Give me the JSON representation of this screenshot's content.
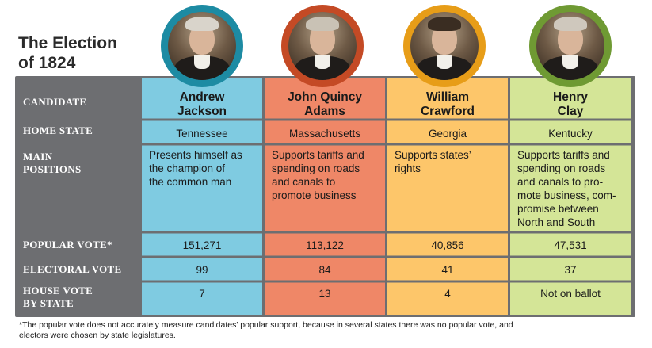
{
  "title_line1": "The Election",
  "title_line2": "of 1824",
  "row_headers": {
    "candidate": "CANDIDATE",
    "home_state": "HOME STATE",
    "main_positions_line1": "MAIN",
    "main_positions_line2": "POSITIONS",
    "popular_vote": "POPULAR VOTE*",
    "electoral_vote": "ELECTORAL VOTE",
    "house_vote_line1": "HOUSE VOTE",
    "house_vote_line2": "BY STATE"
  },
  "candidates": [
    {
      "first": "Andrew",
      "last": "Jackson",
      "home_state": "Tennessee",
      "positions": [
        "Presents himself as",
        "the champion of",
        "the common man"
      ],
      "popular_vote": "151,271",
      "electoral_vote": "99",
      "house_vote": "7",
      "color": "#7fcbe1",
      "ring": "#1d8ba3",
      "hair": "#d9d4cb"
    },
    {
      "first": "John Quincy",
      "last": "Adams",
      "home_state": "Massachusetts",
      "positions": [
        "Supports tariffs and",
        "spending on roads",
        "and canals to",
        "promote business"
      ],
      "popular_vote": "113,122",
      "electoral_vote": "84",
      "house_vote": "13",
      "color": "#ef8767",
      "ring": "#c44a25",
      "hair": "#c9c2b5"
    },
    {
      "first": "William",
      "last": "Crawford",
      "home_state": "Georgia",
      "positions": [
        "Supports states’",
        "rights"
      ],
      "popular_vote": "40,856",
      "electoral_vote": "41",
      "house_vote": "4",
      "color": "#fdc66a",
      "ring": "#e79d18",
      "hair": "#3a2d22"
    },
    {
      "first": "Henry",
      "last": "Clay",
      "home_state": "Kentucky",
      "positions": [
        "Supports tariffs and",
        "spending on roads",
        "and canals to pro-",
        "mote business, com-",
        "promise between",
        "North and South"
      ],
      "popular_vote": "47,531",
      "electoral_vote": "37",
      "house_vote": "Not on ballot",
      "color": "#d4e597",
      "ring": "#6f9a33",
      "hair": "#cfc8bd"
    }
  ],
  "footnote_line1": "*The popular vote does not accurately measure candidates' popular support, because in several states there was no popular vote, and",
  "footnote_line2": "electors were chosen by state legislatures."
}
